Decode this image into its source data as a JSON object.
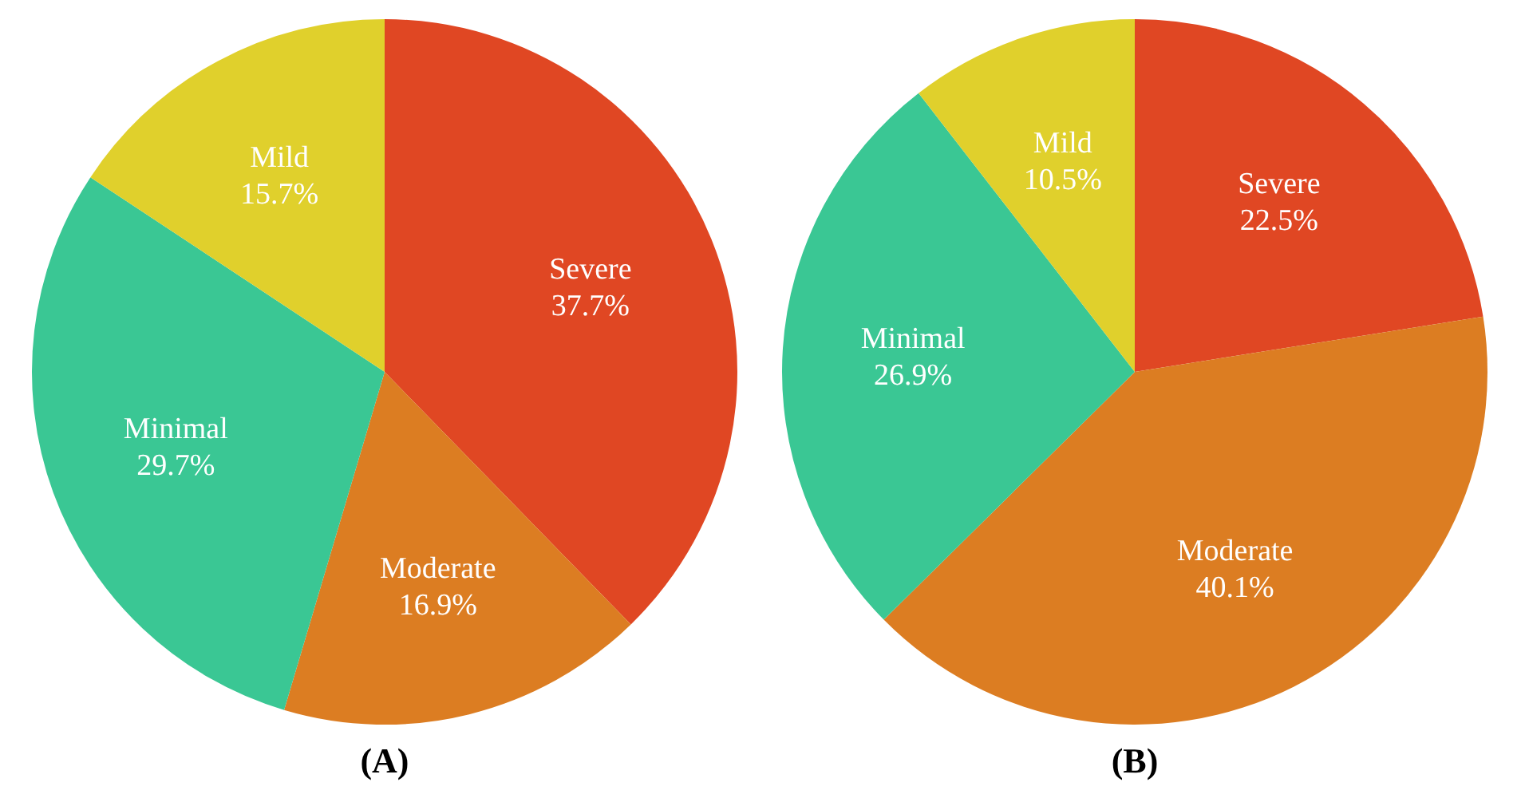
{
  "chart_data": [
    {
      "type": "pie",
      "title": "(A)",
      "categories": [
        "Severe",
        "Moderate",
        "Minimal",
        "Mild"
      ],
      "values": [
        37.7,
        16.9,
        29.7,
        15.7
      ],
      "colors": [
        "#e04723",
        "#dc7d22",
        "#3ac794",
        "#e0d02c"
      ],
      "value_labels": [
        "37.7%",
        "16.9%",
        "29.7%",
        "15.7%"
      ],
      "legend": false
    },
    {
      "type": "pie",
      "title": "(B)",
      "categories": [
        "Severe",
        "Moderate",
        "Minimal",
        "Mild"
      ],
      "values": [
        22.5,
        40.1,
        26.9,
        10.5
      ],
      "colors": [
        "#e04723",
        "#dc7d22",
        "#3ac794",
        "#e0d02c"
      ],
      "value_labels": [
        "22.5%",
        "40.1%",
        "26.9%",
        "10.5%"
      ],
      "legend": false
    }
  ]
}
